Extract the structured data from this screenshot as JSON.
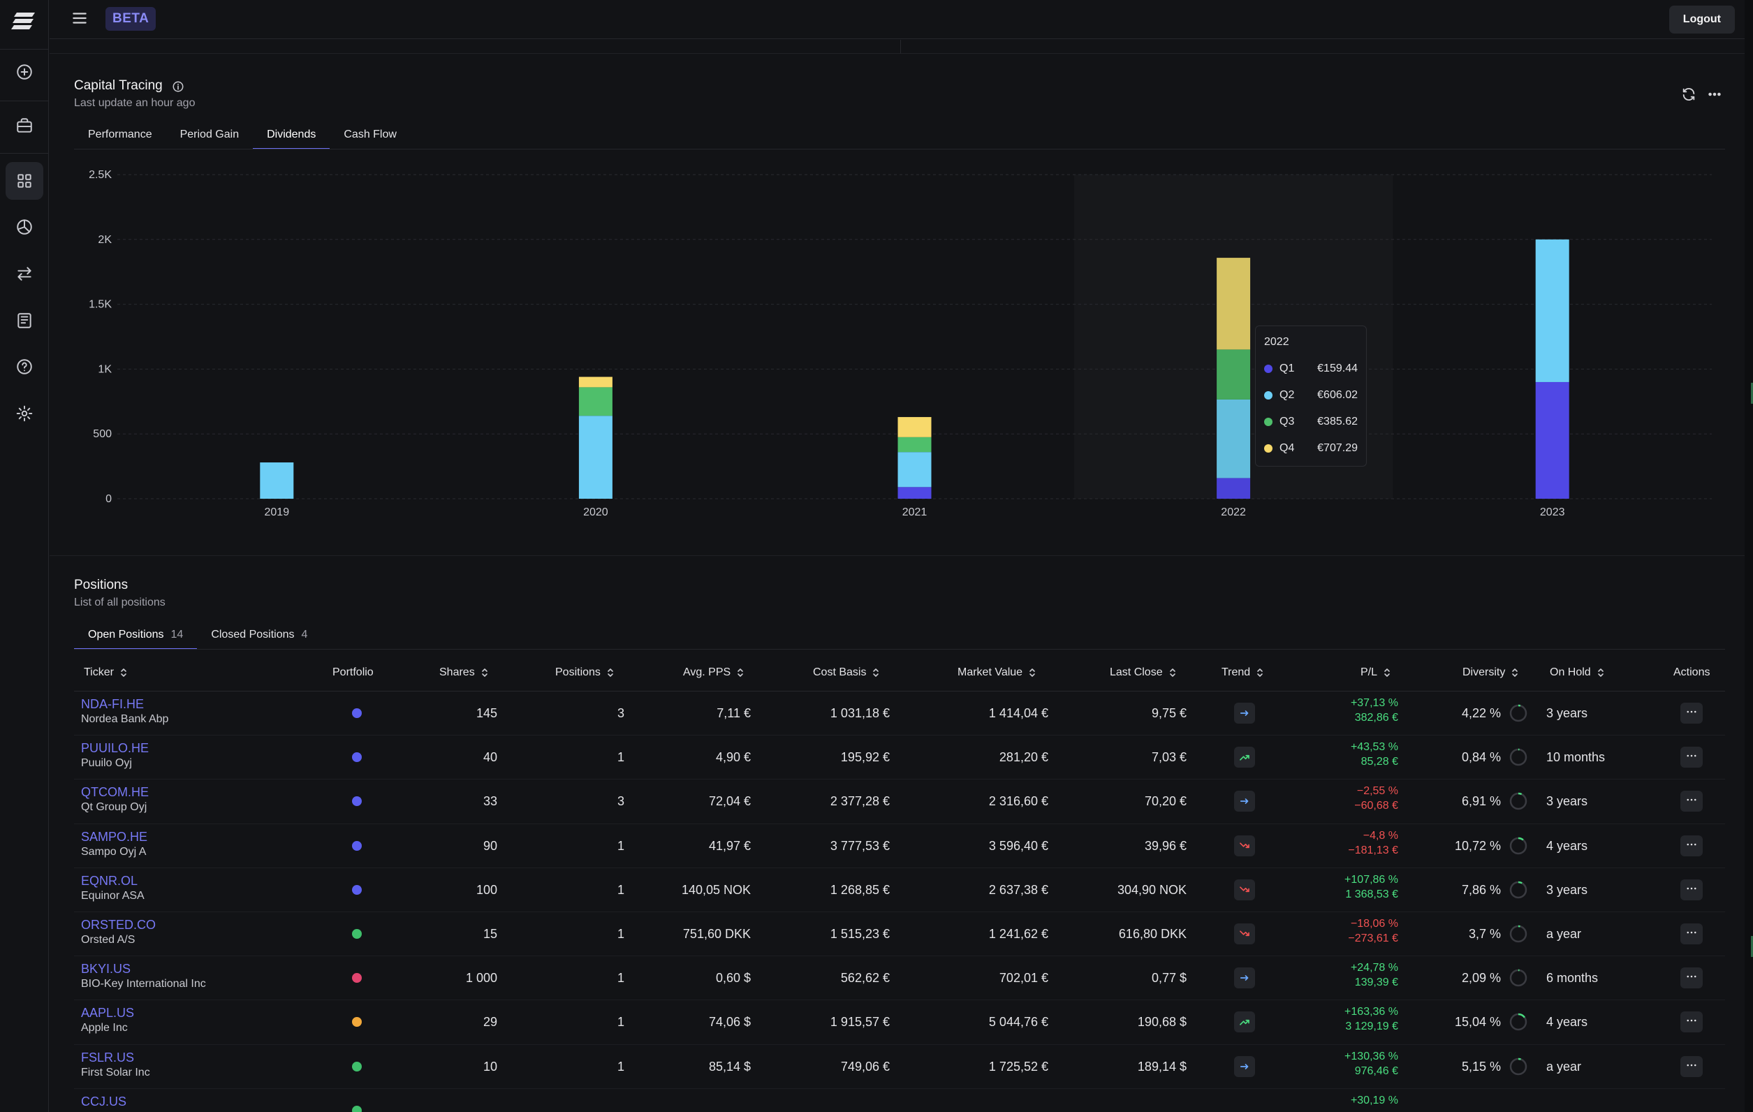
{
  "header": {
    "badge": "BETA",
    "logout_label": "Logout"
  },
  "colors": {
    "q1": "#5048e5",
    "q2": "#6dcff6",
    "q3": "#4fbf6b",
    "q4": "#f7d96b",
    "accent": "#6b6ff2",
    "positive": "#4ade80",
    "negative": "#f05252"
  },
  "sidebar": {
    "icons": [
      "plus-circle-icon",
      "briefcase-icon",
      "grid-icon",
      "pie-chart-icon",
      "transfer-icon",
      "news-icon",
      "help-icon",
      "settings-icon"
    ]
  },
  "capital": {
    "title": "Capital Tracing",
    "subtitle": "Last update an hour ago",
    "tabs": [
      "Performance",
      "Period Gain",
      "Dividends",
      "Cash Flow"
    ],
    "active_tab": "Dividends"
  },
  "chart_data": {
    "type": "bar",
    "stacked": true,
    "categories": [
      "2019",
      "2020",
      "2021",
      "2022",
      "2023"
    ],
    "series": [
      {
        "name": "Q1",
        "values": [
          0,
          0,
          90,
          159.44,
          900
        ]
      },
      {
        "name": "Q2",
        "values": [
          280,
          640,
          270,
          606.02,
          1100
        ]
      },
      {
        "name": "Q3",
        "values": [
          0,
          220,
          115,
          385.62,
          0
        ]
      },
      {
        "name": "Q4",
        "values": [
          0,
          80,
          155,
          707.29,
          0
        ]
      }
    ],
    "ylim": [
      0,
      2500
    ],
    "yticks": [
      0,
      500,
      1000,
      1500,
      2000,
      2500
    ],
    "ytick_labels": [
      "0",
      "500",
      "1K",
      "1.5K",
      "2K",
      "2.5K"
    ],
    "grid": true,
    "hover_category": "2022"
  },
  "tooltip": {
    "title": "2022",
    "rows": [
      {
        "name": "Q1",
        "value": "€159.44"
      },
      {
        "name": "Q2",
        "value": "€606.02"
      },
      {
        "name": "Q3",
        "value": "€385.62"
      },
      {
        "name": "Q4",
        "value": "€707.29"
      }
    ]
  },
  "positions": {
    "title": "Positions",
    "subtitle": "List of all positions",
    "tabs": [
      {
        "label": "Open Positions",
        "count": "14"
      },
      {
        "label": "Closed Positions",
        "count": "4"
      }
    ],
    "columns": [
      "Ticker",
      "Portfolio",
      "Shares",
      "Positions",
      "Avg. PPS",
      "Cost Basis",
      "Market Value",
      "Last Close",
      "Trend",
      "P/L",
      "Diversity",
      "On Hold",
      "Actions"
    ],
    "rows": [
      {
        "ticker": "NDA-FI.HE",
        "name": "Nordea Bank Abp",
        "portfolio_color": "#5b5ff0",
        "shares": "145",
        "positions": "3",
        "avg_pps": "7,11 €",
        "cost_basis": "1 031,18 €",
        "market_value": "1 414,04 €",
        "last_close": "9,75 €",
        "trend": "flat",
        "pl_pct": "+37,13 %",
        "pl_abs": "382,86 €",
        "pl_sign": "pos",
        "diversity": "4,22 %",
        "diversity_frac": 0.0422,
        "on_hold": "3 years"
      },
      {
        "ticker": "PUUILO.HE",
        "name": "Puuilo Oyj",
        "portfolio_color": "#5b5ff0",
        "shares": "40",
        "positions": "1",
        "avg_pps": "4,90 €",
        "cost_basis": "195,92 €",
        "market_value": "281,20 €",
        "last_close": "7,03 €",
        "trend": "up",
        "pl_pct": "+43,53 %",
        "pl_abs": "85,28 €",
        "pl_sign": "pos",
        "diversity": "0,84 %",
        "diversity_frac": 0.0084,
        "on_hold": "10 months"
      },
      {
        "ticker": "QTCOM.HE",
        "name": "Qt Group Oyj",
        "portfolio_color": "#5b5ff0",
        "shares": "33",
        "positions": "3",
        "avg_pps": "72,04 €",
        "cost_basis": "2 377,28 €",
        "market_value": "2 316,60 €",
        "last_close": "70,20 €",
        "trend": "flat",
        "pl_pct": "−2,55 %",
        "pl_abs": "−60,68 €",
        "pl_sign": "neg",
        "diversity": "6,91 %",
        "diversity_frac": 0.0691,
        "on_hold": "3 years"
      },
      {
        "ticker": "SAMPO.HE",
        "name": "Sampo Oyj A",
        "portfolio_color": "#5b5ff0",
        "shares": "90",
        "positions": "1",
        "avg_pps": "41,97 €",
        "cost_basis": "3 777,53 €",
        "market_value": "3 596,40 €",
        "last_close": "39,96 €",
        "trend": "down",
        "pl_pct": "−4,8 %",
        "pl_abs": "−181,13 €",
        "pl_sign": "neg",
        "diversity": "10,72 %",
        "diversity_frac": 0.1072,
        "on_hold": "4 years"
      },
      {
        "ticker": "EQNR.OL",
        "name": "Equinor ASA",
        "portfolio_color": "#5b5ff0",
        "shares": "100",
        "positions": "1",
        "avg_pps": "140,05 NOK",
        "cost_basis": "1 268,85 €",
        "market_value": "2 637,38 €",
        "last_close": "304,90 NOK",
        "trend": "down",
        "pl_pct": "+107,86 %",
        "pl_abs": "1 368,53 €",
        "pl_sign": "pos",
        "diversity": "7,86 %",
        "diversity_frac": 0.0786,
        "on_hold": "3 years"
      },
      {
        "ticker": "ORSTED.CO",
        "name": "Orsted A/S",
        "portfolio_color": "#3fbf6b",
        "shares": "15",
        "positions": "1",
        "avg_pps": "751,60 DKK",
        "cost_basis": "1 515,23 €",
        "market_value": "1 241,62 €",
        "last_close": "616,80 DKK",
        "trend": "down",
        "pl_pct": "−18,06 %",
        "pl_abs": "−273,61 €",
        "pl_sign": "neg",
        "diversity": "3,7 %",
        "diversity_frac": 0.037,
        "on_hold": "a year"
      },
      {
        "ticker": "BKYI.US",
        "name": "BIO-Key International Inc",
        "portfolio_color": "#e2456f",
        "shares": "1 000",
        "positions": "1",
        "avg_pps": "0,60 $",
        "cost_basis": "562,62 €",
        "market_value": "702,01 €",
        "last_close": "0,77 $",
        "trend": "flat",
        "pl_pct": "+24,78 %",
        "pl_abs": "139,39 €",
        "pl_sign": "pos",
        "diversity": "2,09 %",
        "diversity_frac": 0.0209,
        "on_hold": "6 months"
      },
      {
        "ticker": "AAPL.US",
        "name": "Apple Inc",
        "portfolio_color": "#f2a93b",
        "shares": "29",
        "positions": "1",
        "avg_pps": "74,06 $",
        "cost_basis": "1 915,57 €",
        "market_value": "5 044,76 €",
        "last_close": "190,68 $",
        "trend": "up",
        "pl_pct": "+163,36 %",
        "pl_abs": "3 129,19 €",
        "pl_sign": "pos",
        "diversity": "15,04 %",
        "diversity_frac": 0.1504,
        "on_hold": "4 years"
      },
      {
        "ticker": "FSLR.US",
        "name": "First Solar Inc",
        "portfolio_color": "#3fbf6b",
        "shares": "10",
        "positions": "1",
        "avg_pps": "85,14 $",
        "cost_basis": "749,06 €",
        "market_value": "1 725,52 €",
        "last_close": "189,14 $",
        "trend": "flat",
        "pl_pct": "+130,36 %",
        "pl_abs": "976,46 €",
        "pl_sign": "pos",
        "diversity": "5,15 %",
        "diversity_frac": 0.0515,
        "on_hold": "a year"
      },
      {
        "ticker": "CCJ.US",
        "name": "",
        "portfolio_color": "#3fbf6b",
        "shares": "",
        "positions": "",
        "avg_pps": "",
        "cost_basis": "",
        "market_value": "",
        "last_close": "",
        "trend": "",
        "pl_pct": "+30,19 %",
        "pl_abs": "",
        "pl_sign": "pos",
        "diversity": "",
        "diversity_frac": 0,
        "on_hold": ""
      }
    ]
  }
}
